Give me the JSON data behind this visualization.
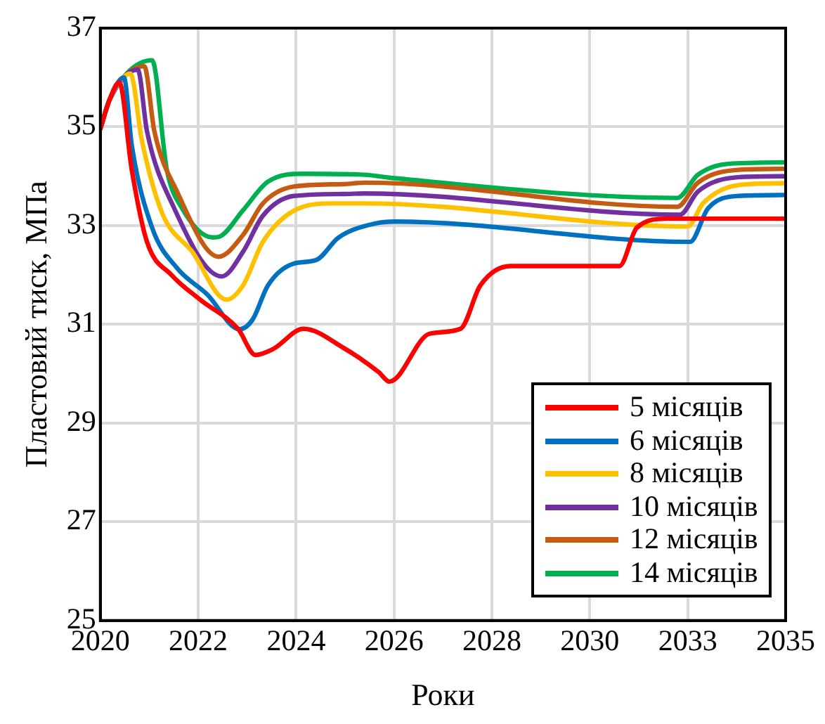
{
  "chart_data": {
    "type": "line",
    "xlabel": "Роки",
    "ylabel": "Пластовий тиск, МПа",
    "xlim": [
      2019.85,
      2034.69
    ],
    "xticks": [
      {
        "value": 2019.85,
        "label": "2020"
      },
      {
        "value": 2021.97,
        "label": "2022"
      },
      {
        "value": 2024.09,
        "label": "2024"
      },
      {
        "value": 2026.21,
        "label": "2026"
      },
      {
        "value": 2028.33,
        "label": "2028"
      },
      {
        "value": 2030.45,
        "label": "2030"
      },
      {
        "value": 2032.57,
        "label": "2033"
      },
      {
        "value": 2034.69,
        "label": "2035"
      }
    ],
    "ylim": [
      25,
      37
    ],
    "yticks": [
      25,
      27,
      29,
      31,
      33,
      35,
      37
    ],
    "grid": true,
    "legend": "bottom right",
    "marker": "none",
    "line_style": "solid",
    "series": [
      {
        "name": "5 місяців",
        "color": "#ff0000",
        "x": [
          2019.85,
          2020.05,
          2020.26,
          2020.53,
          2020.86,
          2021.39,
          2022.01,
          2022.83,
          2023.21,
          2023.59,
          2024.25,
          2025.12,
          2025.88,
          2026.11,
          2026.98,
          2027.65,
          2028.08,
          2028.73,
          2031.09,
          2031.47,
          2032.13,
          2034.69
        ],
        "values": [
          34.96,
          35.55,
          35.9,
          34.13,
          32.67,
          32,
          31.5,
          30.91,
          30.38,
          30.5,
          30.91,
          30.52,
          30.03,
          29.84,
          30.81,
          30.91,
          31.79,
          32.18,
          32.18,
          32.96,
          33.14,
          33.14
        ]
      },
      {
        "name": "6 місяців",
        "color": "#0070c0",
        "x": [
          2019.85,
          2020.05,
          2020.36,
          2020.53,
          2020.97,
          2021.51,
          2022.17,
          2022.86,
          2023.15,
          2023.48,
          2024.04,
          2024.52,
          2025.01,
          2025.79,
          2026.22,
          2032.62,
          2033.01,
          2033.66,
          2034.69
        ],
        "values": [
          34.96,
          35.55,
          36,
          34.63,
          32.96,
          32.14,
          31.6,
          30.9,
          31.1,
          31.79,
          32.23,
          32.3,
          32.76,
          33.04,
          33.08,
          32.67,
          33.35,
          33.6,
          33.62
        ]
      },
      {
        "name": "8 місяців",
        "color": "#ffc000",
        "x": [
          2019.85,
          2020.05,
          2020.5,
          2020.75,
          2021.19,
          2021.84,
          2022.58,
          2022.94,
          2023.37,
          2024.04,
          2024.91,
          2025.57,
          2032.57,
          2032.9,
          2033.66,
          2034.69
        ],
        "values": [
          34.96,
          35.55,
          36.08,
          34.72,
          33.25,
          32.47,
          31.5,
          31.79,
          32.67,
          33.3,
          33.45,
          33.45,
          32.98,
          33.45,
          33.82,
          33.86
        ]
      },
      {
        "name": "10 місяців",
        "color": "#7030a0",
        "x": [
          2019.85,
          2020.05,
          2020.66,
          2020.86,
          2021.4,
          2022.48,
          2022.94,
          2023.37,
          2024.04,
          2025.12,
          2025.57,
          2032.4,
          2032.79,
          2033.66,
          2034.69
        ],
        "values": [
          34.96,
          35.55,
          36.16,
          34.91,
          33.45,
          31.97,
          32.47,
          33.2,
          33.6,
          33.64,
          33.65,
          33.22,
          33.69,
          33.98,
          34
        ]
      },
      {
        "name": "12 місяців",
        "color": "#c55a11",
        "x": [
          2019.85,
          2020.05,
          2020.8,
          2021.02,
          2021.51,
          2022.41,
          2022.94,
          2023.37,
          2024.04,
          2025.12,
          2025.57,
          2032.34,
          2032.79,
          2033.66,
          2034.69
        ],
        "values": [
          34.96,
          35.55,
          36.23,
          34.91,
          33.69,
          32.37,
          32.81,
          33.45,
          33.79,
          33.84,
          33.87,
          33.38,
          33.87,
          34.13,
          34.15
        ]
      },
      {
        "name": "14 місяців",
        "color": "#00b050",
        "x": [
          2019.85,
          2020.05,
          2020.44,
          2020.97,
          2021.29,
          2021.62,
          2022.28,
          2022.44,
          2022.94,
          2023.48,
          2024.25,
          2025.57,
          2026.22,
          2032.34,
          2032.79,
          2033.44,
          2034.69
        ],
        "values": [
          34.96,
          35.55,
          36.1,
          36.35,
          34.13,
          33.35,
          32.76,
          32.78,
          33.31,
          33.89,
          34.05,
          34.03,
          33.96,
          33.56,
          34.03,
          34.25,
          34.28
        ]
      }
    ]
  }
}
